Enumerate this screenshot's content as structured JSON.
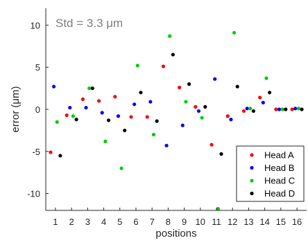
{
  "chart_data": {
    "type": "scatter",
    "title": "",
    "annotation": "Std = 3.3 μm",
    "xlabel": "positions",
    "ylabel": "error (μm)",
    "xlim": [
      0.4,
      16.6
    ],
    "ylim": [
      -12,
      12
    ],
    "xticks": [
      1,
      2,
      3,
      4,
      5,
      6,
      7,
      8,
      9,
      10,
      11,
      12,
      13,
      14,
      15,
      16
    ],
    "yticks": [
      -10,
      -5,
      0,
      5,
      10
    ],
    "grid": false,
    "legend_position": "bottom-right",
    "series": [
      {
        "name": "Head A",
        "color": "#ff0000",
        "x": [
          0.7,
          1.7,
          2.7,
          3.7,
          4.7,
          5.7,
          6.7,
          7.7,
          8.7,
          9.7,
          10.7,
          11.7,
          12.7,
          13.7,
          14.7,
          15.7
        ],
        "y": [
          -5.1,
          -0.7,
          1.2,
          1.0,
          1.5,
          -0.9,
          -0.9,
          5.1,
          2.6,
          0.3,
          -4.2,
          -0.8,
          -0.2,
          1.4,
          0.0,
          0.0
        ]
      },
      {
        "name": "Head B",
        "color": "#0000ff",
        "x": [
          0.9,
          1.9,
          2.9,
          3.9,
          4.9,
          5.9,
          6.9,
          7.9,
          8.9,
          9.9,
          10.9,
          11.9,
          12.9,
          13.9,
          14.9,
          15.9
        ],
        "y": [
          2.7,
          0.2,
          0.2,
          -0.4,
          -0.8,
          0.6,
          0.9,
          -4.3,
          -1.9,
          -0.2,
          3.6,
          -1.2,
          0.1,
          0.8,
          0.0,
          0.1
        ]
      },
      {
        "name": "Head C",
        "color": "#00cc00",
        "x": [
          1.1,
          2.1,
          3.1,
          4.1,
          5.1,
          6.1,
          7.1,
          8.1,
          9.1,
          10.1,
          11.1,
          12.1,
          13.1,
          14.1,
          15.1,
          16.1
        ],
        "y": [
          -1.5,
          -0.8,
          2.5,
          -3.8,
          -7.0,
          5.2,
          -3.0,
          8.7,
          0.9,
          -1.0,
          -11.8,
          9.1,
          0.1,
          3.7,
          0.0,
          0.1
        ]
      },
      {
        "name": "Head D",
        "color": "#000000",
        "x": [
          1.3,
          2.3,
          3.3,
          4.3,
          5.3,
          6.3,
          7.3,
          8.3,
          9.3,
          10.3,
          11.3,
          12.3,
          13.3,
          14.3,
          15.3,
          16.3
        ],
        "y": [
          -5.5,
          -1.2,
          2.5,
          -1.3,
          -2.5,
          2.0,
          -1.4,
          6.5,
          3.0,
          0.3,
          -5.3,
          2.7,
          -0.2,
          2.0,
          0.0,
          0.0
        ]
      }
    ]
  }
}
